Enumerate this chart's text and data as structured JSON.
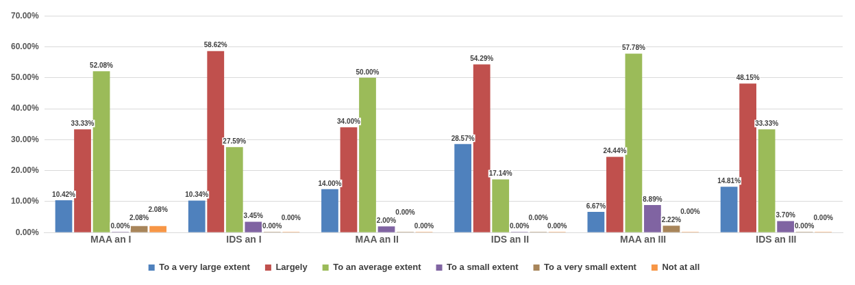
{
  "chart_data": {
    "type": "bar",
    "categories": [
      "MAA an I",
      "IDS an I",
      "MAA an II",
      "IDS an II",
      "MAA an III",
      "IDS an III"
    ],
    "series": [
      {
        "name": "To a very large extent",
        "color": "#4f81bd",
        "values": [
          10.42,
          10.34,
          14.0,
          28.57,
          6.67,
          14.81
        ],
        "value_labels": [
          "10.42%",
          "10.34%",
          "14.00%",
          "28.57%",
          "6.67%",
          "14.81%"
        ]
      },
      {
        "name": "Largely",
        "color": "#c0504d",
        "values": [
          33.33,
          58.62,
          34.0,
          54.29,
          24.44,
          48.15
        ],
        "value_labels": [
          "33.33%",
          "58.62%",
          "34.00%",
          "54.29%",
          "24.44%",
          "48.15%"
        ]
      },
      {
        "name": "To an average extent",
        "color": "#9bbb59",
        "values": [
          52.08,
          27.59,
          50.0,
          17.14,
          57.78,
          33.33
        ],
        "value_labels": [
          "52.08%",
          "27.59%",
          "50.00%",
          "17.14%",
          "57.78%",
          "33.33%"
        ]
      },
      {
        "name": "To a small extent",
        "color": "#8064a2",
        "values": [
          0.0,
          3.45,
          2.0,
          0.0,
          8.89,
          3.7
        ],
        "value_labels": [
          "0.00%",
          "3.45%",
          "2.00%",
          "0.00%",
          "8.89%",
          "3.70%"
        ]
      },
      {
        "name": "To a very small extent",
        "color": "#a8855a",
        "values": [
          2.08,
          0.0,
          0.0,
          0.0,
          2.22,
          0.0
        ],
        "value_labels": [
          "2.08%",
          "0.00%",
          "0.00%",
          "0.00%",
          "2.22%",
          "0.00%"
        ]
      },
      {
        "name": "Not at all",
        "color": "#f79646",
        "values": [
          2.08,
          0.0,
          0.0,
          0.0,
          0.0,
          0.0
        ],
        "value_labels": [
          "2.08%",
          "0.00%",
          "0.00%",
          "0.00%",
          "0.00%",
          "0.00%"
        ]
      }
    ],
    "ylim": [
      0,
      70
    ],
    "yticks": [
      {
        "value": 0,
        "label": "0.00%"
      },
      {
        "value": 10,
        "label": "10.00%"
      },
      {
        "value": 20,
        "label": "20.00%"
      },
      {
        "value": 30,
        "label": "30.00%"
      },
      {
        "value": 40,
        "label": "40.00%"
      },
      {
        "value": 50,
        "label": "50.00%"
      },
      {
        "value": 60,
        "label": "60.00%"
      },
      {
        "value": 70,
        "label": "70.00%"
      }
    ],
    "grid": "y",
    "legend": "bottom"
  }
}
